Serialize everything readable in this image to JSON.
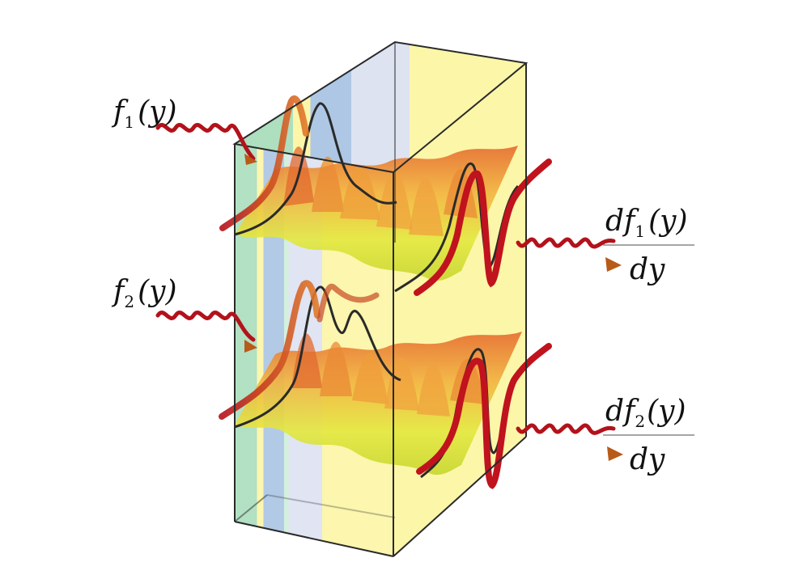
{
  "labels": {
    "input_1": {
      "func": "f",
      "sub": "1",
      "arg": "(y)"
    },
    "input_2": {
      "func": "f",
      "sub": "2",
      "arg": "(y)"
    },
    "output_1": {
      "num_prefix": "df",
      "sub": "1",
      "arg": "(y)",
      "den": "dy"
    },
    "output_2": {
      "num_prefix": "df",
      "sub": "2",
      "arg": "(y)",
      "den": "dy"
    }
  },
  "colors": {
    "wave": "#b3121b",
    "arrow_head": "#b85a18",
    "layer_green": "#9fd9b4",
    "layer_blue": "#9fbde0",
    "layer_lavender": "#d8def0",
    "layer_yellow": "#fbf49a",
    "sheet_yellow": "#d8e34a",
    "sheet_peak": "#e57b35",
    "outline": "#2a2a2a"
  }
}
